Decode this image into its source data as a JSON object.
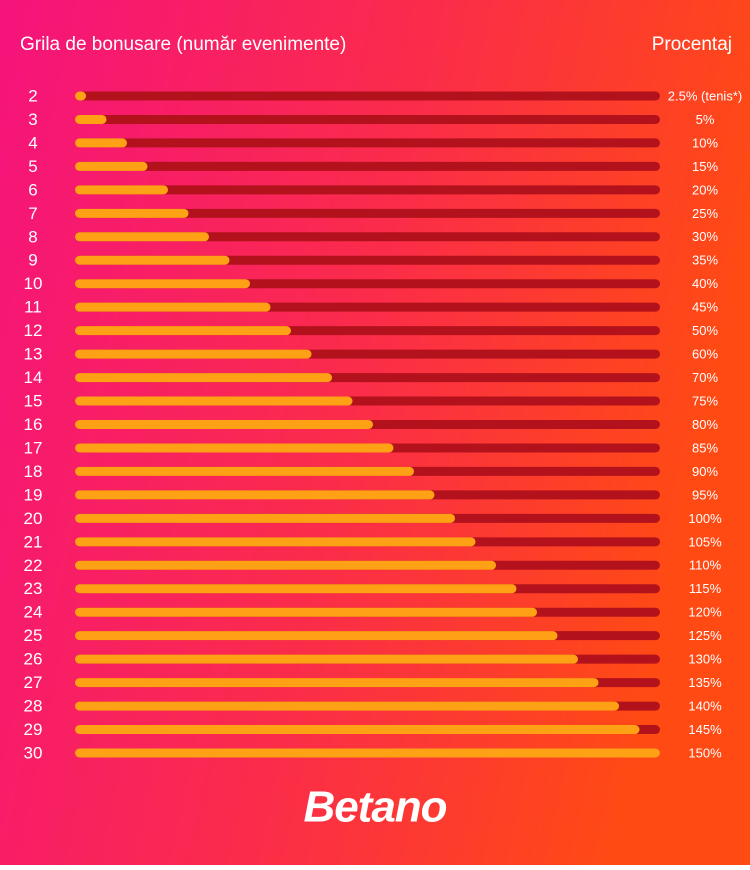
{
  "chart_data": {
    "type": "bar",
    "title": "Grila de bonusare  (număr evenimente)",
    "value_title": "Procentaj",
    "x": [
      2,
      3,
      4,
      5,
      6,
      7,
      8,
      9,
      10,
      11,
      12,
      13,
      14,
      15,
      16,
      17,
      18,
      19,
      20,
      21,
      22,
      23,
      24,
      25,
      26,
      27,
      28,
      29,
      30
    ],
    "xlim": [
      2,
      30
    ],
    "values": [
      2.5,
      5,
      10,
      15,
      20,
      25,
      30,
      35,
      40,
      45,
      50,
      60,
      70,
      75,
      80,
      85,
      90,
      95,
      100,
      105,
      110,
      115,
      120,
      125,
      130,
      135,
      140,
      145,
      150
    ],
    "value_labels": [
      "2.5% (tenis*)",
      "5%",
      "10%",
      "15%",
      "20%",
      "25%",
      "30%",
      "35%",
      "40%",
      "45%",
      "50%",
      "60%",
      "70%",
      "75%",
      "80%",
      "85%",
      "90%",
      "95%",
      "100%",
      "105%",
      "110%",
      "115%",
      "120%",
      "125%",
      "130%",
      "135%",
      "140%",
      "145%",
      "150%"
    ],
    "color": "#ffa114",
    "track_color": "#b3121c"
  },
  "logo": "Betano"
}
